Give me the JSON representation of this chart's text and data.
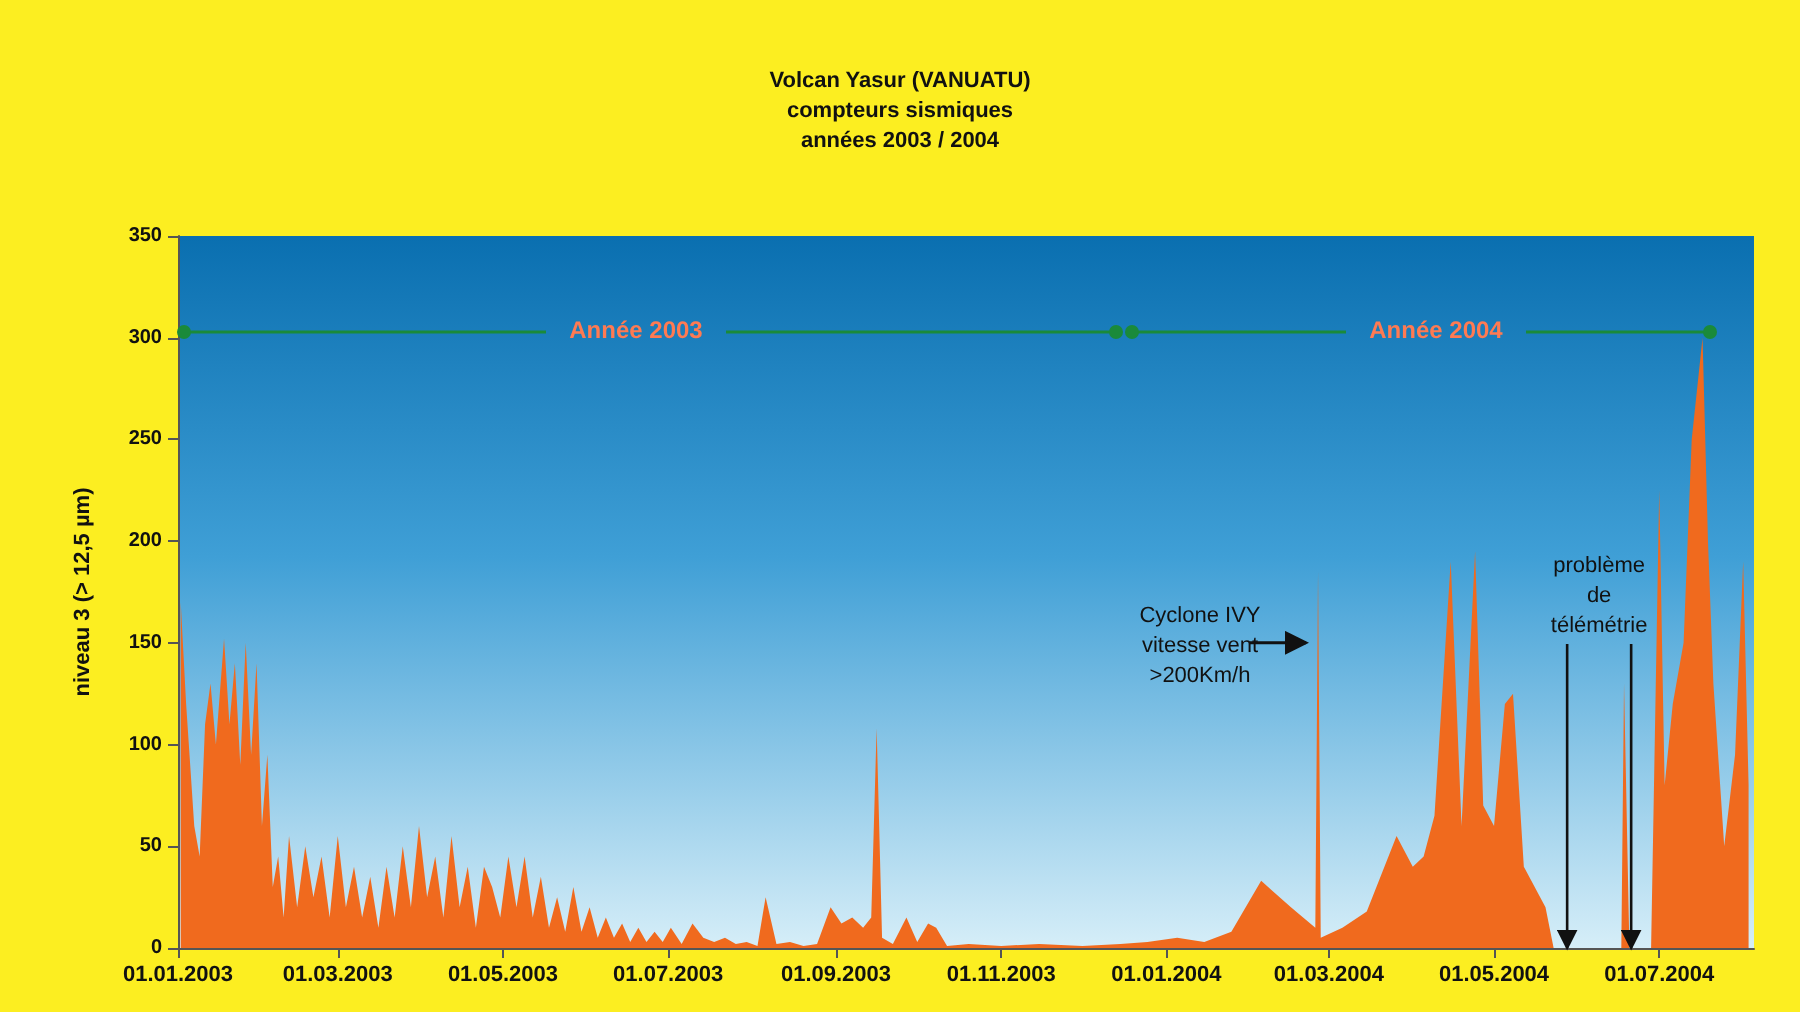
{
  "chart_data": {
    "type": "area",
    "title": "Volcan Yasur (VANUATU)\ncompteurs sismiques\nannées 2003 / 2004",
    "ylabel": "niveau 3 (> 12,5 µm)",
    "x": [
      "2003-01-02",
      "2003-01-04",
      "2003-01-07",
      "2003-01-09",
      "2003-01-11",
      "2003-01-13",
      "2003-01-15",
      "2003-01-18",
      "2003-01-20",
      "2003-01-22",
      "2003-01-24",
      "2003-01-26",
      "2003-01-28",
      "2003-01-30",
      "2003-02-01",
      "2003-02-03",
      "2003-02-05",
      "2003-02-07",
      "2003-02-09",
      "2003-02-11",
      "2003-02-14",
      "2003-02-17",
      "2003-02-20",
      "2003-02-23",
      "2003-02-26",
      "2003-03-01",
      "2003-03-04",
      "2003-03-07",
      "2003-03-10",
      "2003-03-13",
      "2003-03-16",
      "2003-03-19",
      "2003-03-22",
      "2003-03-25",
      "2003-03-28",
      "2003-03-31",
      "2003-04-03",
      "2003-04-06",
      "2003-04-09",
      "2003-04-12",
      "2003-04-15",
      "2003-04-18",
      "2003-04-21",
      "2003-04-24",
      "2003-04-27",
      "2003-04-30",
      "2003-05-03",
      "2003-05-06",
      "2003-05-09",
      "2003-05-12",
      "2003-05-15",
      "2003-05-18",
      "2003-05-21",
      "2003-05-24",
      "2003-05-27",
      "2003-05-30",
      "2003-06-02",
      "2003-06-05",
      "2003-06-08",
      "2003-06-11",
      "2003-06-14",
      "2003-06-17",
      "2003-06-20",
      "2003-06-23",
      "2003-06-26",
      "2003-06-29",
      "2003-07-02",
      "2003-07-06",
      "2003-07-10",
      "2003-07-14",
      "2003-07-18",
      "2003-07-22",
      "2003-07-26",
      "2003-07-30",
      "2003-08-03",
      "2003-08-06",
      "2003-08-10",
      "2003-08-15",
      "2003-08-20",
      "2003-08-25",
      "2003-08-30",
      "2003-09-03",
      "2003-09-07",
      "2003-09-11",
      "2003-09-14",
      "2003-09-16",
      "2003-09-18",
      "2003-09-22",
      "2003-09-27",
      "2003-10-01",
      "2003-10-05",
      "2003-10-08",
      "2003-10-12",
      "2003-10-20",
      "2003-11-01",
      "2003-11-15",
      "2003-12-01",
      "2003-12-15",
      "2003-12-25",
      "2004-01-05",
      "2004-01-15",
      "2004-01-25",
      "2004-02-05",
      "2004-02-16",
      "2004-02-25",
      "2004-02-26",
      "2004-02-27",
      "2004-03-06",
      "2004-03-15",
      "2004-03-26",
      "2004-04-01",
      "2004-04-05",
      "2004-04-09",
      "2004-04-15",
      "2004-04-19",
      "2004-04-24",
      "2004-04-27",
      "2004-05-01",
      "2004-05-05",
      "2004-05-08",
      "2004-05-12",
      "2004-05-20",
      "2004-05-23",
      "2004-06-17",
      "2004-06-18",
      "2004-06-20",
      "2004-06-28",
      "2004-07-01",
      "2004-07-03",
      "2004-07-06",
      "2004-07-10",
      "2004-07-13",
      "2004-07-17",
      "2004-07-19",
      "2004-07-21",
      "2004-07-25",
      "2004-07-29",
      "2004-08-01",
      "2004-08-03"
    ],
    "series": [
      {
        "color": "#f06a1e",
        "values": [
          170,
          120,
          60,
          45,
          110,
          130,
          100,
          152,
          110,
          140,
          90,
          150,
          95,
          140,
          60,
          95,
          30,
          45,
          15,
          55,
          20,
          50,
          25,
          45,
          15,
          55,
          20,
          40,
          15,
          35,
          10,
          40,
          15,
          50,
          20,
          60,
          25,
          45,
          15,
          55,
          20,
          40,
          10,
          40,
          30,
          15,
          45,
          20,
          45,
          15,
          35,
          10,
          25,
          8,
          30,
          8,
          20,
          5,
          15,
          5,
          12,
          3,
          10,
          3,
          8,
          3,
          10,
          2,
          12,
          5,
          3,
          5,
          2,
          3,
          1,
          25,
          2,
          3,
          1,
          2,
          20,
          12,
          15,
          10,
          15,
          108,
          5,
          2,
          15,
          3,
          12,
          10,
          1,
          2,
          1,
          2,
          1,
          2,
          3,
          5,
          3,
          8,
          33,
          20,
          10,
          185,
          5,
          10,
          18,
          55,
          40,
          45,
          65,
          190,
          60,
          195,
          70,
          60,
          120,
          125,
          40,
          20,
          0,
          0,
          130,
          0,
          0,
          225,
          80,
          120,
          150,
          250,
          300,
          200,
          130,
          50,
          95,
          190,
          80
        ]
      }
    ],
    "xlim": [
      "2003-01-01",
      "2004-08-05"
    ],
    "xticks": [
      {
        "value": "2003-01-01",
        "label": "01.01.2003"
      },
      {
        "value": "2003-03-01",
        "label": "01.03.2003"
      },
      {
        "value": "2003-05-01",
        "label": "01.05.2003"
      },
      {
        "value": "2003-07-01",
        "label": "01.07.2003"
      },
      {
        "value": "2003-09-01",
        "label": "01.09.2003"
      },
      {
        "value": "2003-11-01",
        "label": "01.11.2003"
      },
      {
        "value": "2004-01-01",
        "label": "01.01.2004"
      },
      {
        "value": "2004-03-01",
        "label": "01.03.2004"
      },
      {
        "value": "2004-05-01",
        "label": "01.05.2004"
      },
      {
        "value": "2004-07-01",
        "label": "01.07.2004"
      }
    ],
    "ylim": [
      0,
      350
    ],
    "yticks": [
      0,
      50,
      100,
      150,
      200,
      250,
      300,
      350
    ],
    "annotations": [
      "Année 2003",
      "Année 2004",
      {
        "text": "Cyclone IVY\nvitesse vent\n>200Km/h",
        "x": "2004-02-26",
        "y": 150
      },
      {
        "text": "problème\nde\ntélémétrie",
        "x": "2004-05-28",
        "y": 0
      }
    ]
  }
}
